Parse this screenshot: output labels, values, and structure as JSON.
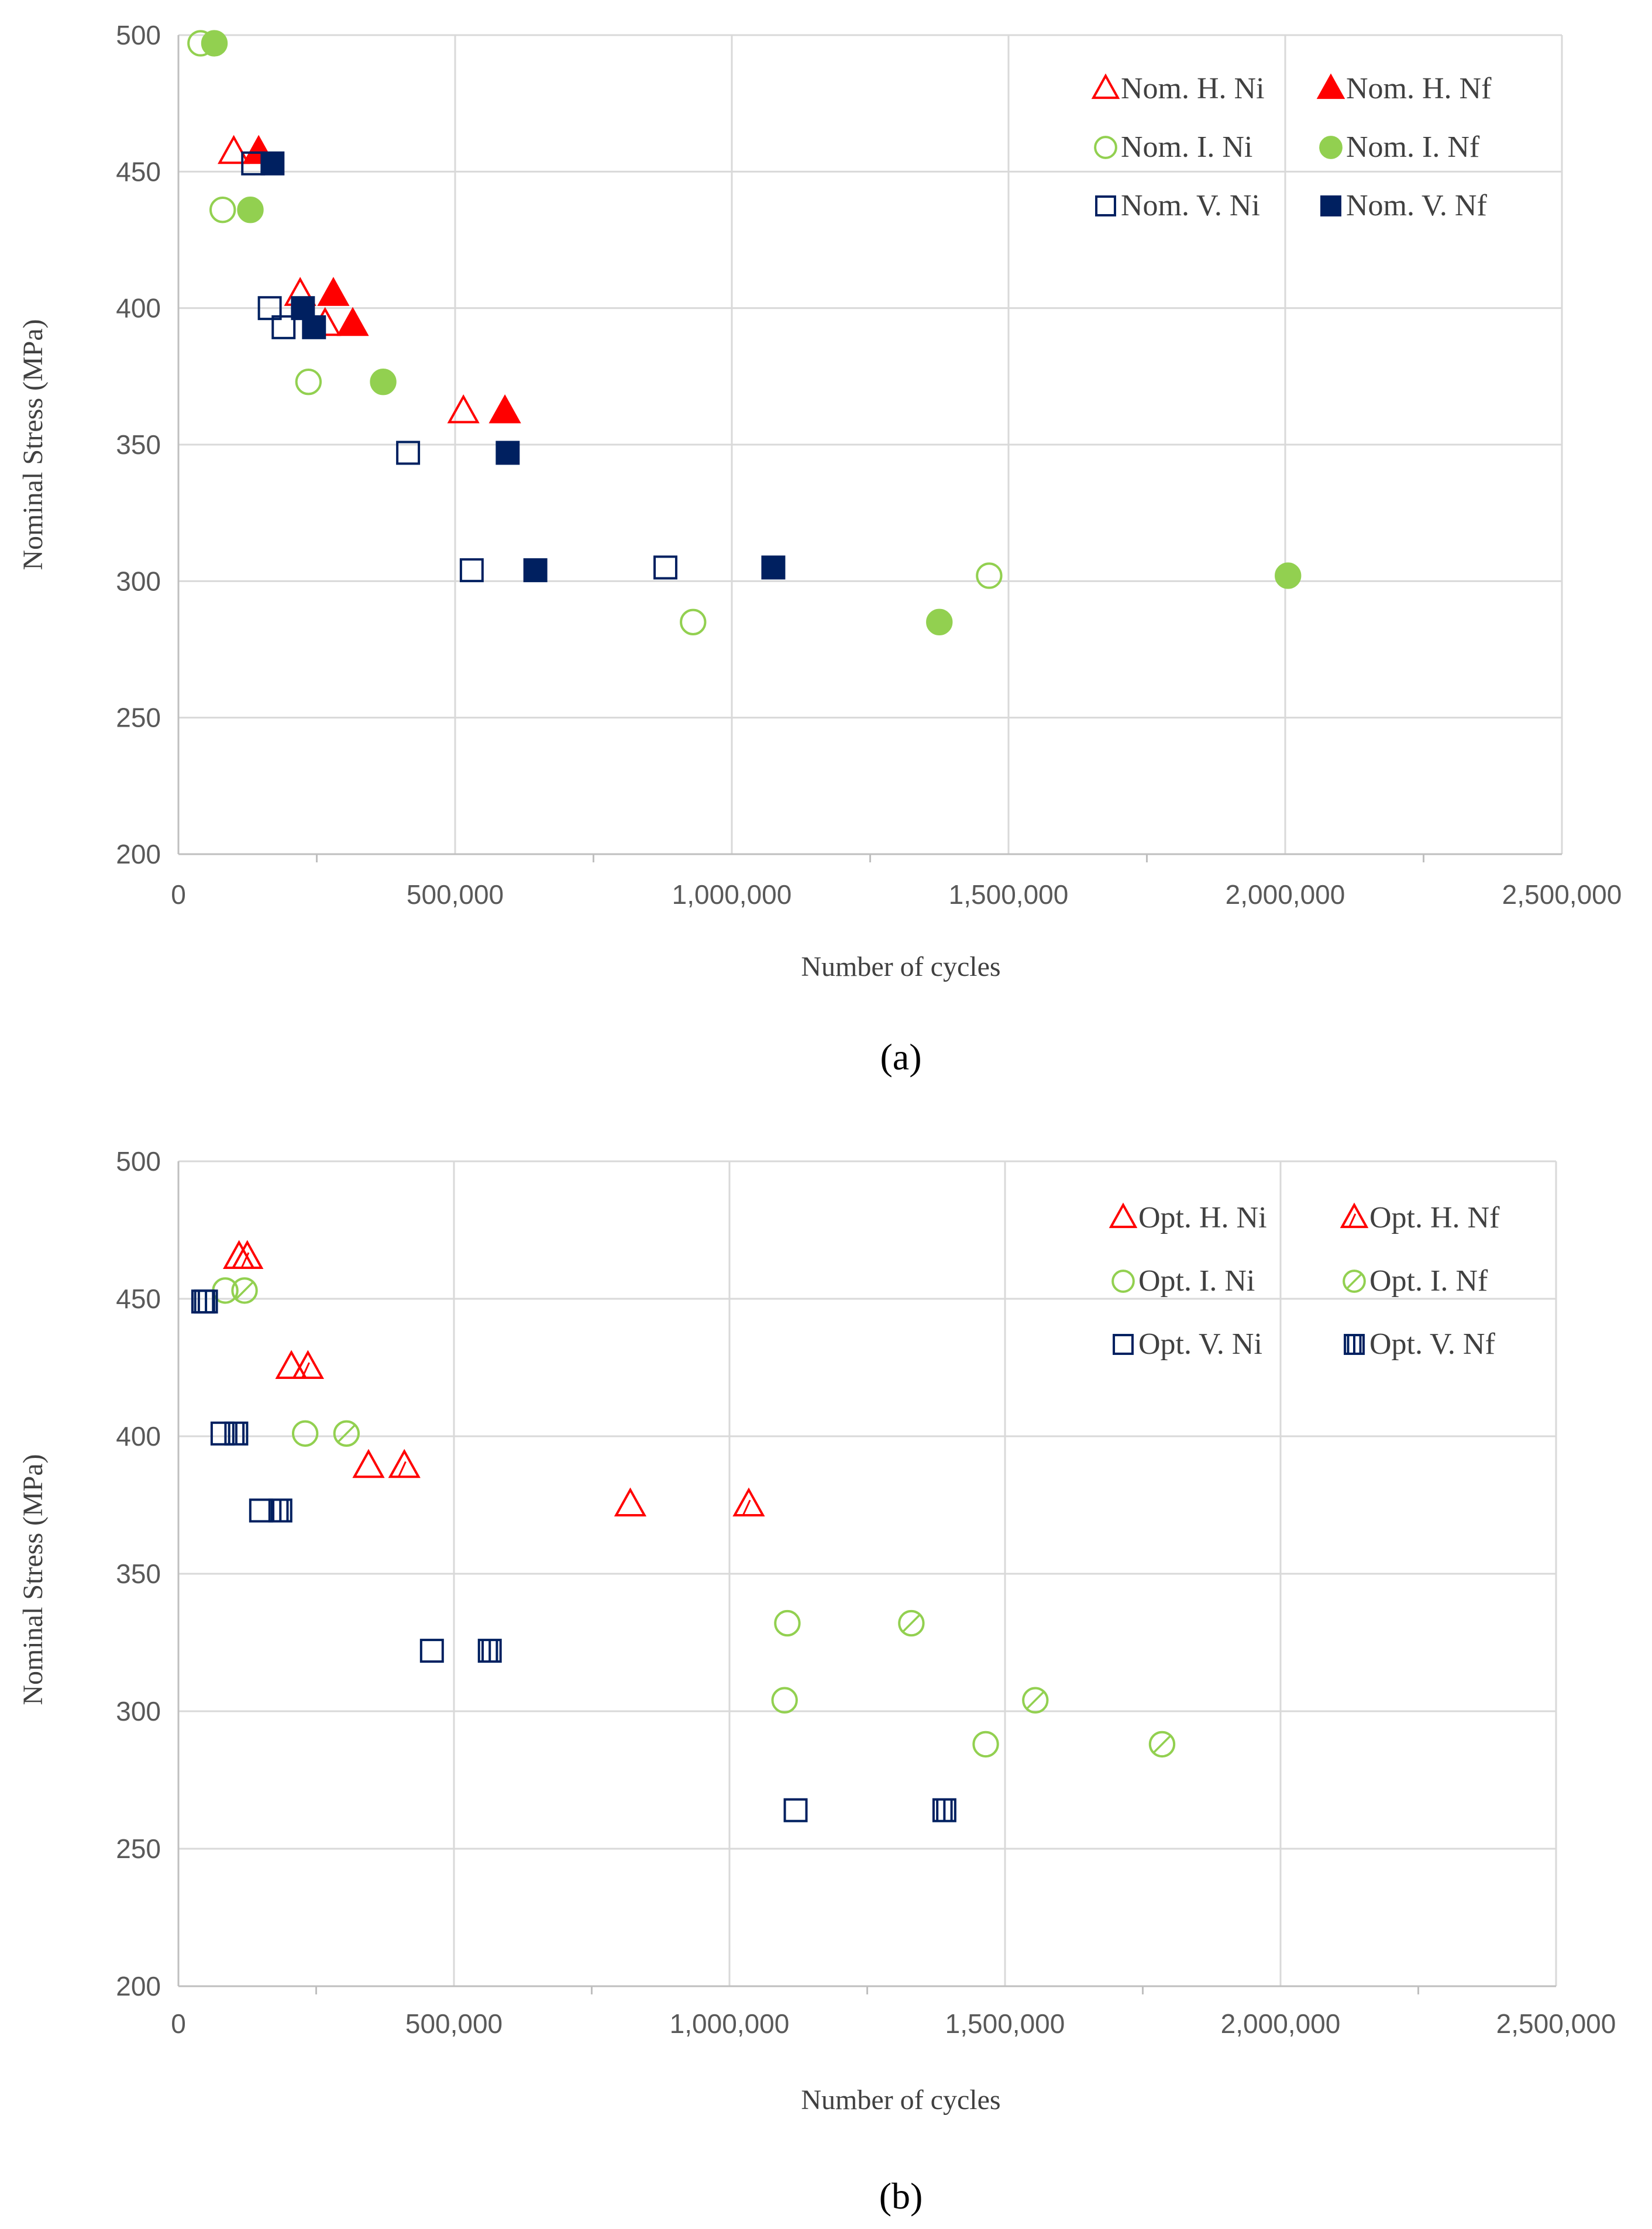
{
  "colors": {
    "H": "#ff0000",
    "I": "#92d050",
    "V": "#002060",
    "grid": "#d9d9d9",
    "axis": "#bfbfbf"
  },
  "chart_data": [
    {
      "id": "a",
      "type": "scatter",
      "caption": "(a)",
      "xlabel": "Number of cycles",
      "ylabel": "Nominal Stress (MPa)",
      "xlim": [
        0,
        2500000
      ],
      "ylim": [
        200,
        500
      ],
      "xticks": [
        {
          "value": 0,
          "label": "0"
        },
        {
          "value": 500000,
          "label": "500,000"
        },
        {
          "value": 1000000,
          "label": "1,000,000"
        },
        {
          "value": 1500000,
          "label": "1,500,000"
        },
        {
          "value": 2000000,
          "label": "2,000,000"
        },
        {
          "value": 2500000,
          "label": "2,500,000"
        }
      ],
      "yticks": [
        {
          "value": 200,
          "label": "200"
        },
        {
          "value": 250,
          "label": "250"
        },
        {
          "value": 300,
          "label": "300"
        },
        {
          "value": 350,
          "label": "350"
        },
        {
          "value": 400,
          "label": "400"
        },
        {
          "value": 450,
          "label": "450"
        },
        {
          "value": 500,
          "label": "500"
        }
      ],
      "grid": true,
      "legend_position": "top-right",
      "series": [
        {
          "name": "Nom. H. Ni",
          "marker": "triangle-open",
          "color": "#ff0000",
          "points": [
            [
              100000,
              457
            ],
            [
              220000,
              405
            ],
            [
              265000,
              394
            ],
            [
              515000,
              362
            ]
          ]
        },
        {
          "name": "Nom. H. Nf",
          "marker": "triangle-filled",
          "color": "#ff0000",
          "points": [
            [
              145000,
              457
            ],
            [
              280000,
              405
            ],
            [
              315000,
              394
            ],
            [
              590000,
              362
            ]
          ]
        },
        {
          "name": "Nom. I. Ni",
          "marker": "circle-open",
          "color": "#92d050",
          "points": [
            [
              40000,
              497
            ],
            [
              80000,
              436
            ],
            [
              235000,
              373
            ],
            [
              930000,
              285
            ],
            [
              1465000,
              302
            ]
          ]
        },
        {
          "name": "Nom. I. Nf",
          "marker": "circle-filled",
          "color": "#92d050",
          "points": [
            [
              65000,
              497
            ],
            [
              130000,
              436
            ],
            [
              370000,
              373
            ],
            [
              1375000,
              285
            ],
            [
              2005000,
              302
            ]
          ]
        },
        {
          "name": "Nom. V. Ni",
          "marker": "square-open",
          "color": "#002060",
          "points": [
            [
              135000,
              453
            ],
            [
              165000,
              400
            ],
            [
              190000,
              393
            ],
            [
              415000,
              347
            ],
            [
              530000,
              304
            ],
            [
              880000,
              305
            ]
          ]
        },
        {
          "name": "Nom. V. Nf",
          "marker": "square-filled",
          "color": "#002060",
          "points": [
            [
              170000,
              453
            ],
            [
              225000,
              400
            ],
            [
              245000,
              393
            ],
            [
              595000,
              347
            ],
            [
              645000,
              304
            ],
            [
              1075000,
              305
            ]
          ]
        }
      ]
    },
    {
      "id": "b",
      "type": "scatter",
      "caption": "(b)",
      "xlabel": "Number of cycles",
      "ylabel": "Nominal Stress (MPa)",
      "xlim": [
        0,
        2500000
      ],
      "ylim": [
        200,
        500
      ],
      "xticks": [
        {
          "value": 0,
          "label": "0"
        },
        {
          "value": 500000,
          "label": "500,000"
        },
        {
          "value": 1000000,
          "label": "1,000,000"
        },
        {
          "value": 1500000,
          "label": "1,500,000"
        },
        {
          "value": 2000000,
          "label": "2,000,000"
        },
        {
          "value": 2500000,
          "label": "2,500,000"
        }
      ],
      "yticks": [
        {
          "value": 200,
          "label": "200"
        },
        {
          "value": 250,
          "label": "250"
        },
        {
          "value": 300,
          "label": "300"
        },
        {
          "value": 350,
          "label": "350"
        },
        {
          "value": 400,
          "label": "400"
        },
        {
          "value": 450,
          "label": "450"
        },
        {
          "value": 500,
          "label": "500"
        }
      ],
      "grid": true,
      "legend_position": "top-right",
      "series": [
        {
          "name": "Opt. H. Ni",
          "marker": "triangle-open",
          "color": "#ff0000",
          "points": [
            [
              110000,
              465
            ],
            [
              205000,
              425
            ],
            [
              345000,
              389
            ],
            [
              820000,
              375
            ]
          ]
        },
        {
          "name": "Opt. H. Nf",
          "marker": "triangle-hatched",
          "color": "#ff0000",
          "points": [
            [
              125000,
              465
            ],
            [
              235000,
              425
            ],
            [
              410000,
              389
            ],
            [
              1035000,
              375
            ]
          ]
        },
        {
          "name": "Opt. I. Ni",
          "marker": "circle-open",
          "color": "#92d050",
          "points": [
            [
              85000,
              453
            ],
            [
              230000,
              401
            ],
            [
              1105000,
              332
            ],
            [
              1100000,
              304
            ],
            [
              1465000,
              288
            ]
          ]
        },
        {
          "name": "Opt. I. Nf",
          "marker": "circle-hatched",
          "color": "#92d050",
          "points": [
            [
              120000,
              453
            ],
            [
              305000,
              401
            ],
            [
              1330000,
              332
            ],
            [
              1555000,
              304
            ],
            [
              1785000,
              288
            ]
          ]
        },
        {
          "name": "Opt. V. Ni",
          "marker": "square-open",
          "color": "#002060",
          "points": [
            [
              45000,
              449
            ],
            [
              80000,
              401
            ],
            [
              150000,
              373
            ],
            [
              460000,
              322
            ],
            [
              1120000,
              264
            ]
          ]
        },
        {
          "name": "Opt. V. Nf",
          "marker": "square-striped",
          "color": "#002060",
          "points": [
            [
              50000,
              449
            ],
            [
              105000,
              401
            ],
            [
              185000,
              373
            ],
            [
              565000,
              322
            ],
            [
              1390000,
              264
            ]
          ]
        }
      ]
    }
  ]
}
